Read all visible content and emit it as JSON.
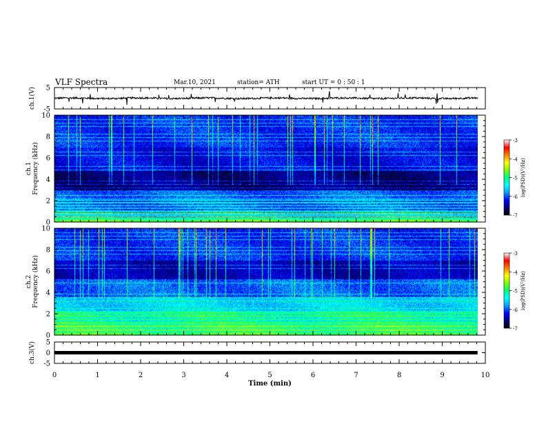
{
  "header": {
    "title": "VLF Spectra",
    "date": "Mar.10, 2021",
    "station": "station= ATH",
    "start": "start  UT =   0 : 50 : 1"
  },
  "chart_data": [
    {
      "type": "line",
      "name": "ch1-waveform",
      "ylabel": "ch.1(V)",
      "ylim": [
        -5,
        5
      ],
      "yticks": [
        "5",
        "-5"
      ],
      "x_range": [
        0,
        9.82
      ],
      "baseline": 0,
      "amplitude": 0.6,
      "grid": false
    },
    {
      "type": "heatmap",
      "name": "ch1-spectrogram",
      "ylabel": "ch.1\nFrequency (kHz)",
      "ylim": [
        0,
        10
      ],
      "yticks": [
        "0",
        "2",
        "4",
        "6",
        "8",
        "10"
      ],
      "x_range": [
        0,
        9.82
      ],
      "colorbar": {
        "label": "log(PSD)(V²/Hz)",
        "range": [
          -7,
          -3
        ],
        "ticks": [
          "-3",
          "-4",
          "-5",
          "-6",
          "-7"
        ]
      }
    },
    {
      "type": "heatmap",
      "name": "ch2-spectrogram",
      "ylabel": "ch.2\nFrequency (kHz)",
      "ylim": [
        0,
        10
      ],
      "yticks": [
        "0",
        "2",
        "4",
        "6",
        "8",
        "10"
      ],
      "x_range": [
        0,
        9.82
      ],
      "colorbar": {
        "label": "log(PSD)(V²/Hz)",
        "range": [
          -7,
          -3
        ],
        "ticks": [
          "-3",
          "-4",
          "-5",
          "-6",
          "-7"
        ]
      }
    },
    {
      "type": "line",
      "name": "ch3-waveform",
      "ylabel": "ch.3(V)",
      "ylim": [
        -5,
        5
      ],
      "yticks": [
        "5",
        "0",
        "-5"
      ],
      "x_range": [
        0,
        9.82
      ],
      "baseline": 0,
      "amplitude": 0.3,
      "grid": false
    }
  ],
  "xaxis": {
    "label": "Time (min)",
    "range": [
      0,
      10
    ],
    "ticks": [
      "0",
      "1",
      "2",
      "3",
      "4",
      "5",
      "6",
      "7",
      "8",
      "9",
      "10"
    ]
  },
  "colors": {
    "colormap": [
      "#000000",
      "#00007a",
      "#0000ff",
      "#00a0ff",
      "#00ffff",
      "#00ff80",
      "#80ff00",
      "#ffff00",
      "#ff8000",
      "#ff0000",
      "#ffffff"
    ]
  }
}
